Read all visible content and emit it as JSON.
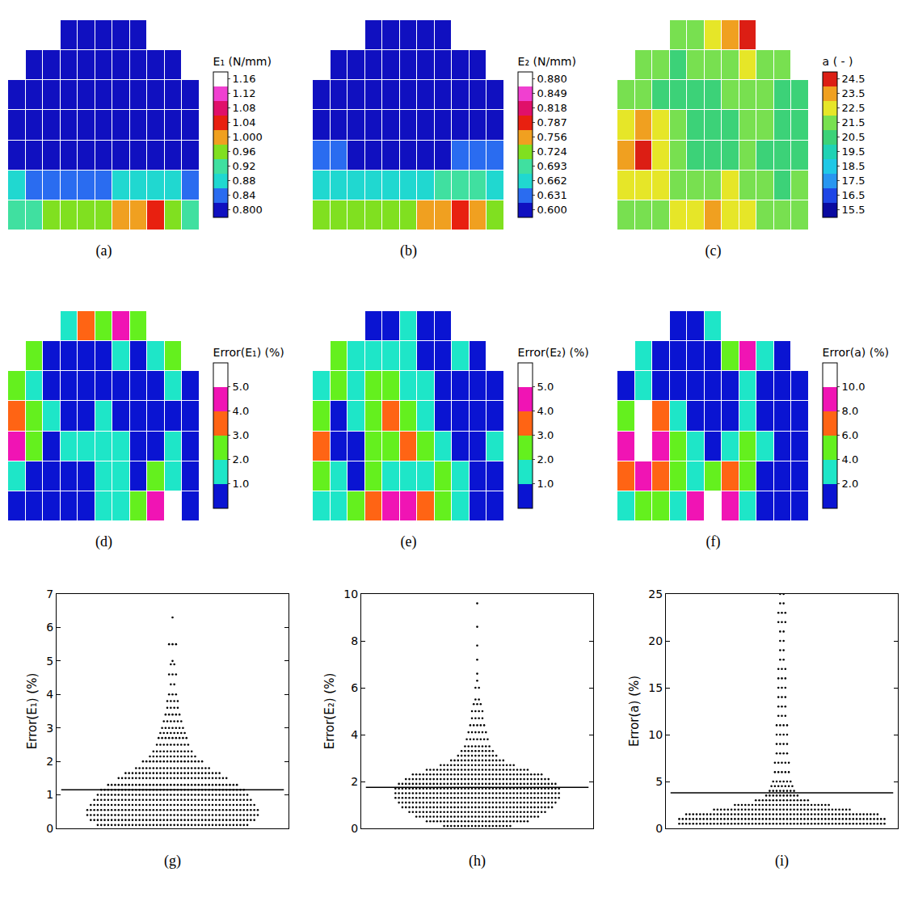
{
  "chart_data": [
    {
      "type": "heatmap",
      "panel": "(a)",
      "title": "E₁ (N/mm)",
      "tick_labels": false,
      "zlim": [
        0.78,
        1.18
      ],
      "zticks": [
        {
          "value": 0.8,
          "label": "0.800"
        },
        0.84,
        0.88,
        0.92,
        0.96,
        {
          "value": 1.0,
          "label": "1.000"
        },
        1.04,
        1.08,
        1.12,
        1.16
      ],
      "colors": [
        "#1010c0",
        "#2a6cf0",
        "#20d8d0",
        "#40e0a0",
        "#80e020",
        "#f0a020",
        "#e82010",
        "#e0106a",
        "#f040d0",
        "#ffffff"
      ],
      "cells": [
        [
          null,
          null,
          null,
          0.8,
          0.8,
          0.8,
          0.8,
          0.8,
          null,
          null,
          null
        ],
        [
          null,
          0.8,
          0.8,
          0.8,
          0.8,
          0.8,
          0.8,
          0.8,
          0.8,
          0.8,
          null
        ],
        [
          0.8,
          0.8,
          0.8,
          0.8,
          0.8,
          0.8,
          0.8,
          0.8,
          0.8,
          0.8,
          0.8
        ],
        [
          0.81,
          0.8,
          0.8,
          0.8,
          0.8,
          0.8,
          0.8,
          0.8,
          0.8,
          0.8,
          0.81
        ],
        [
          0.82,
          0.81,
          0.8,
          0.8,
          0.8,
          0.8,
          0.8,
          0.8,
          0.8,
          0.81,
          0.82
        ],
        [
          0.86,
          0.85,
          0.84,
          0.84,
          0.84,
          0.85,
          0.86,
          0.87,
          0.88,
          0.86,
          0.85
        ],
        [
          0.92,
          0.93,
          0.94,
          0.95,
          0.95,
          0.96,
          0.98,
          1.01,
          1.02,
          0.97,
          0.93
        ]
      ]
    },
    {
      "type": "heatmap",
      "panel": "(b)",
      "title": "E₂ (N/mm)",
      "tick_labels": false,
      "zlim": [
        0.5845,
        0.8955
      ],
      "zticks": [
        {
          "value": 0.6,
          "label": "0.600"
        },
        0.631,
        0.662,
        0.693,
        0.724,
        0.756,
        0.787,
        0.818,
        0.849,
        {
          "value": 0.88,
          "label": "0.880"
        }
      ],
      "colors": [
        "#1010c0",
        "#2a6cf0",
        "#20d8d0",
        "#40e0a0",
        "#80e020",
        "#f0a020",
        "#e82010",
        "#e0106a",
        "#f040d0",
        "#ffffff"
      ],
      "cells": [
        [
          null,
          null,
          null,
          0.61,
          0.61,
          0.61,
          0.6,
          0.6,
          null,
          null,
          null
        ],
        [
          null,
          0.61,
          0.61,
          0.6,
          0.6,
          0.6,
          0.6,
          0.6,
          0.61,
          0.61,
          null
        ],
        [
          0.61,
          0.6,
          0.6,
          0.6,
          0.6,
          0.6,
          0.6,
          0.6,
          0.6,
          0.61,
          0.61
        ],
        [
          0.61,
          0.61,
          0.6,
          0.6,
          0.6,
          0.6,
          0.6,
          0.6,
          0.6,
          0.61,
          0.61
        ],
        [
          0.63,
          0.62,
          0.61,
          0.61,
          0.61,
          0.61,
          0.61,
          0.61,
          0.62,
          0.62,
          0.63
        ],
        [
          0.67,
          0.66,
          0.65,
          0.65,
          0.65,
          0.66,
          0.67,
          0.68,
          0.69,
          0.68,
          0.66
        ],
        [
          0.71,
          0.72,
          0.73,
          0.73,
          0.72,
          0.73,
          0.74,
          0.76,
          0.78,
          0.74,
          0.72
        ]
      ]
    },
    {
      "type": "heatmap",
      "panel": "(c)",
      "title": "a ( - )",
      "tick_labels": false,
      "zlim": [
        15,
        25
      ],
      "zticks": [
        15.5,
        16.5,
        17.5,
        18.5,
        19.5,
        20.5,
        21.5,
        22.5,
        23.5,
        24.5
      ],
      "colors": [
        "#0a0aa0",
        "#1e46e6",
        "#2896f0",
        "#20c8e6",
        "#20d2b4",
        "#3cd278",
        "#78e050",
        "#e6e628",
        "#f0a020",
        "#dc1e14"
      ],
      "cells": [
        [
          null,
          null,
          null,
          21,
          21.5,
          22,
          23,
          24.5,
          null,
          null,
          null
        ],
        [
          null,
          21,
          21,
          20.5,
          21,
          21,
          21.5,
          22.5,
          21.5,
          21,
          null
        ],
        [
          21.5,
          21,
          20.5,
          20.5,
          20,
          20.5,
          21,
          21,
          21,
          20.5,
          20.5
        ],
        [
          22.5,
          23.5,
          22,
          21,
          20.5,
          20,
          20.5,
          21,
          21,
          20.5,
          20.5
        ],
        [
          23,
          24.5,
          22.5,
          21.5,
          20.5,
          20.5,
          20.5,
          21,
          20.5,
          20,
          20.5
        ],
        [
          22,
          22.5,
          22,
          21.5,
          21,
          21.5,
          22,
          21.5,
          21,
          20.5,
          21
        ],
        [
          21,
          21.5,
          21.5,
          22,
          22.5,
          23,
          22.5,
          22,
          21.5,
          21,
          21
        ]
      ]
    },
    {
      "type": "heatmap",
      "panel": "(d)",
      "title": "Error(E₁) (%)",
      "tick_labels": false,
      "zlim": [
        0,
        6
      ],
      "zticks": [
        {
          "value": 1,
          "label": "1.0"
        },
        {
          "value": 2,
          "label": "2.0"
        },
        {
          "value": 3,
          "label": "3.0"
        },
        {
          "value": 4,
          "label": "4.0"
        },
        {
          "value": 5,
          "label": "5.0"
        }
      ],
      "colors": [
        "#0a14d2",
        "#1ee6c8",
        "#64f01e",
        "#ff6414",
        "#f014b4",
        "#ffffff"
      ],
      "cells": [
        [
          null,
          null,
          null,
          1.5,
          3.5,
          2.5,
          4.5,
          2.5,
          null,
          null,
          null
        ],
        [
          null,
          2.5,
          0.5,
          0.5,
          0.5,
          0.5,
          1.5,
          0.5,
          1.5,
          2.5,
          null
        ],
        [
          2.5,
          1.5,
          0.5,
          0.5,
          0.5,
          0.5,
          0.5,
          0.5,
          0.5,
          1.5,
          0.5
        ],
        [
          3.5,
          2.5,
          1.5,
          0.5,
          0.5,
          1.5,
          0.5,
          0.5,
          0.5,
          0.5,
          0.5
        ],
        [
          4.5,
          2.5,
          0.5,
          1.5,
          1.5,
          1.5,
          1.5,
          0.5,
          0.5,
          1.5,
          0.5
        ],
        [
          1.5,
          0.5,
          0.5,
          0.5,
          0.5,
          1.5,
          1.5,
          0.5,
          2.5,
          1.5,
          0.5
        ],
        [
          0.5,
          0.5,
          0.5,
          0.5,
          0.5,
          1.5,
          1.5,
          2.5,
          4.5,
          5.5,
          0.5
        ]
      ]
    },
    {
      "type": "heatmap",
      "panel": "(e)",
      "title": "Error(E₂) (%)",
      "tick_labels": false,
      "zlim": [
        0,
        6
      ],
      "zticks": [
        {
          "value": 1,
          "label": "1.0"
        },
        {
          "value": 2,
          "label": "2.0"
        },
        {
          "value": 3,
          "label": "3.0"
        },
        {
          "value": 4,
          "label": "4.0"
        },
        {
          "value": 5,
          "label": "5.0"
        }
      ],
      "colors": [
        "#0a14d2",
        "#1ee6c8",
        "#64f01e",
        "#ff6414",
        "#f014b4",
        "#ffffff"
      ],
      "cells": [
        [
          null,
          null,
          null,
          0.5,
          0.5,
          1.5,
          0.5,
          0.5,
          null,
          null,
          null
        ],
        [
          null,
          2.5,
          1.5,
          1.5,
          1.5,
          1.5,
          0.5,
          0.5,
          1.5,
          0.5,
          null
        ],
        [
          1.5,
          2.5,
          1.5,
          2.5,
          2.5,
          1.5,
          1.5,
          0.5,
          0.5,
          0.5,
          0.5
        ],
        [
          2.5,
          0.5,
          1.5,
          2.5,
          3.5,
          2.5,
          1.5,
          0.5,
          0.5,
          0.5,
          0.5
        ],
        [
          3.5,
          0.5,
          0.5,
          2.5,
          2.5,
          3.5,
          2.5,
          1.5,
          0.5,
          0.5,
          1.5
        ],
        [
          2.5,
          1.5,
          0.5,
          2.5,
          1.5,
          1.5,
          1.5,
          2.5,
          1.5,
          0.5,
          0.5
        ],
        [
          1.5,
          1.5,
          2.5,
          3.5,
          4.5,
          4.5,
          3.5,
          2.5,
          1.5,
          0.5,
          0.5
        ]
      ]
    },
    {
      "type": "heatmap",
      "panel": "(f)",
      "title": "Error(a) (%)",
      "tick_labels": false,
      "zlim": [
        0,
        12
      ],
      "zticks": [
        {
          "value": 2,
          "label": "2.0"
        },
        {
          "value": 4,
          "label": "4.0"
        },
        {
          "value": 6,
          "label": "6.0"
        },
        {
          "value": 8,
          "label": "8.0"
        },
        {
          "value": 10,
          "label": "10.0"
        }
      ],
      "colors": [
        "#0a14d2",
        "#1ee6c8",
        "#64f01e",
        "#ff6414",
        "#f014b4",
        "#ffffff"
      ],
      "cells": [
        [
          null,
          null,
          null,
          1,
          1,
          3,
          11,
          11,
          null,
          null,
          null
        ],
        [
          null,
          3,
          1,
          1,
          1,
          1,
          5,
          9,
          3,
          1,
          null
        ],
        [
          1,
          3,
          1,
          1,
          1,
          1,
          1,
          3,
          1,
          1,
          1
        ],
        [
          5,
          11,
          7,
          3,
          1,
          1,
          1,
          3,
          1,
          1,
          1
        ],
        [
          9,
          11,
          9,
          5,
          3,
          1,
          3,
          5,
          3,
          1,
          1
        ],
        [
          7,
          9,
          7,
          5,
          3,
          5,
          7,
          5,
          1,
          1,
          1
        ],
        [
          3,
          5,
          5,
          3,
          9,
          11,
          9,
          3,
          1,
          1,
          1
        ]
      ]
    },
    {
      "type": "scatter",
      "panel": "(g)",
      "y_label": "Error(E₁) (%)",
      "tick_labels": "y",
      "color": "#000000",
      "marker": "dot",
      "ylim": [
        0,
        7
      ],
      "yticks": [
        0,
        1,
        2,
        3,
        4,
        5,
        6,
        7
      ],
      "mean": 1.15,
      "values": [
        0.1,
        0.25,
        0.4,
        0.55,
        0.7,
        0.85,
        1.0,
        1.15,
        1.3,
        1.5,
        1.65,
        1.8,
        2.0,
        2.15,
        2.3,
        2.5,
        2.7,
        2.85,
        3.0,
        3.2,
        3.4,
        3.6,
        3.8,
        4.0,
        4.3,
        4.6,
        4.9,
        5.0,
        5.5,
        6.3
      ],
      "counts": [
        44,
        48,
        50,
        50,
        48,
        46,
        44,
        42,
        38,
        32,
        28,
        22,
        18,
        14,
        12,
        10,
        9,
        8,
        7,
        6,
        5,
        4,
        4,
        3,
        2,
        3,
        2,
        1,
        3,
        1
      ]
    },
    {
      "type": "scatter",
      "panel": "(h)",
      "y_label": "Error(E₂) (%)",
      "tick_labels": "y",
      "color": "#000000",
      "marker": "dot",
      "ylim": [
        0,
        10
      ],
      "yticks": [
        0,
        2,
        4,
        6,
        8,
        10
      ],
      "mean": 1.75,
      "values": [
        0.1,
        0.3,
        0.5,
        0.7,
        0.9,
        1.1,
        1.3,
        1.5,
        1.7,
        1.9,
        2.1,
        2.3,
        2.5,
        2.7,
        2.9,
        3.1,
        3.3,
        3.5,
        3.8,
        4.1,
        4.4,
        4.7,
        5.0,
        5.3,
        5.5,
        6.0,
        6.3,
        6.6,
        7.2,
        7.8,
        8.6,
        9.6
      ],
      "counts": [
        20,
        30,
        36,
        40,
        44,
        46,
        48,
        48,
        48,
        46,
        42,
        38,
        30,
        22,
        16,
        12,
        10,
        8,
        7,
        6,
        5,
        4,
        4,
        3,
        2,
        2,
        1,
        1,
        1,
        1,
        1,
        1
      ]
    },
    {
      "type": "scatter",
      "panel": "(i)",
      "y_label": "Error(a) (%)",
      "tick_labels": "y",
      "color": "#000000",
      "marker": "dot",
      "ylim": [
        0,
        25
      ],
      "yticks": [
        0,
        5,
        10,
        15,
        20,
        25
      ],
      "mean": 3.8,
      "values": [
        0.5,
        1.0,
        1.5,
        2.0,
        2.5,
        3.0,
        3.5,
        4.0,
        4.5,
        5,
        6,
        7,
        8,
        9,
        10,
        11,
        12,
        13,
        14,
        15,
        16,
        17,
        18,
        19,
        20,
        21,
        22,
        23,
        24,
        25
      ],
      "counts": [
        60,
        60,
        56,
        40,
        28,
        16,
        10,
        8,
        7,
        6,
        5,
        5,
        4,
        4,
        4,
        4,
        3,
        3,
        3,
        3,
        3,
        3,
        2,
        2,
        2,
        2,
        3,
        3,
        2,
        2
      ]
    }
  ]
}
